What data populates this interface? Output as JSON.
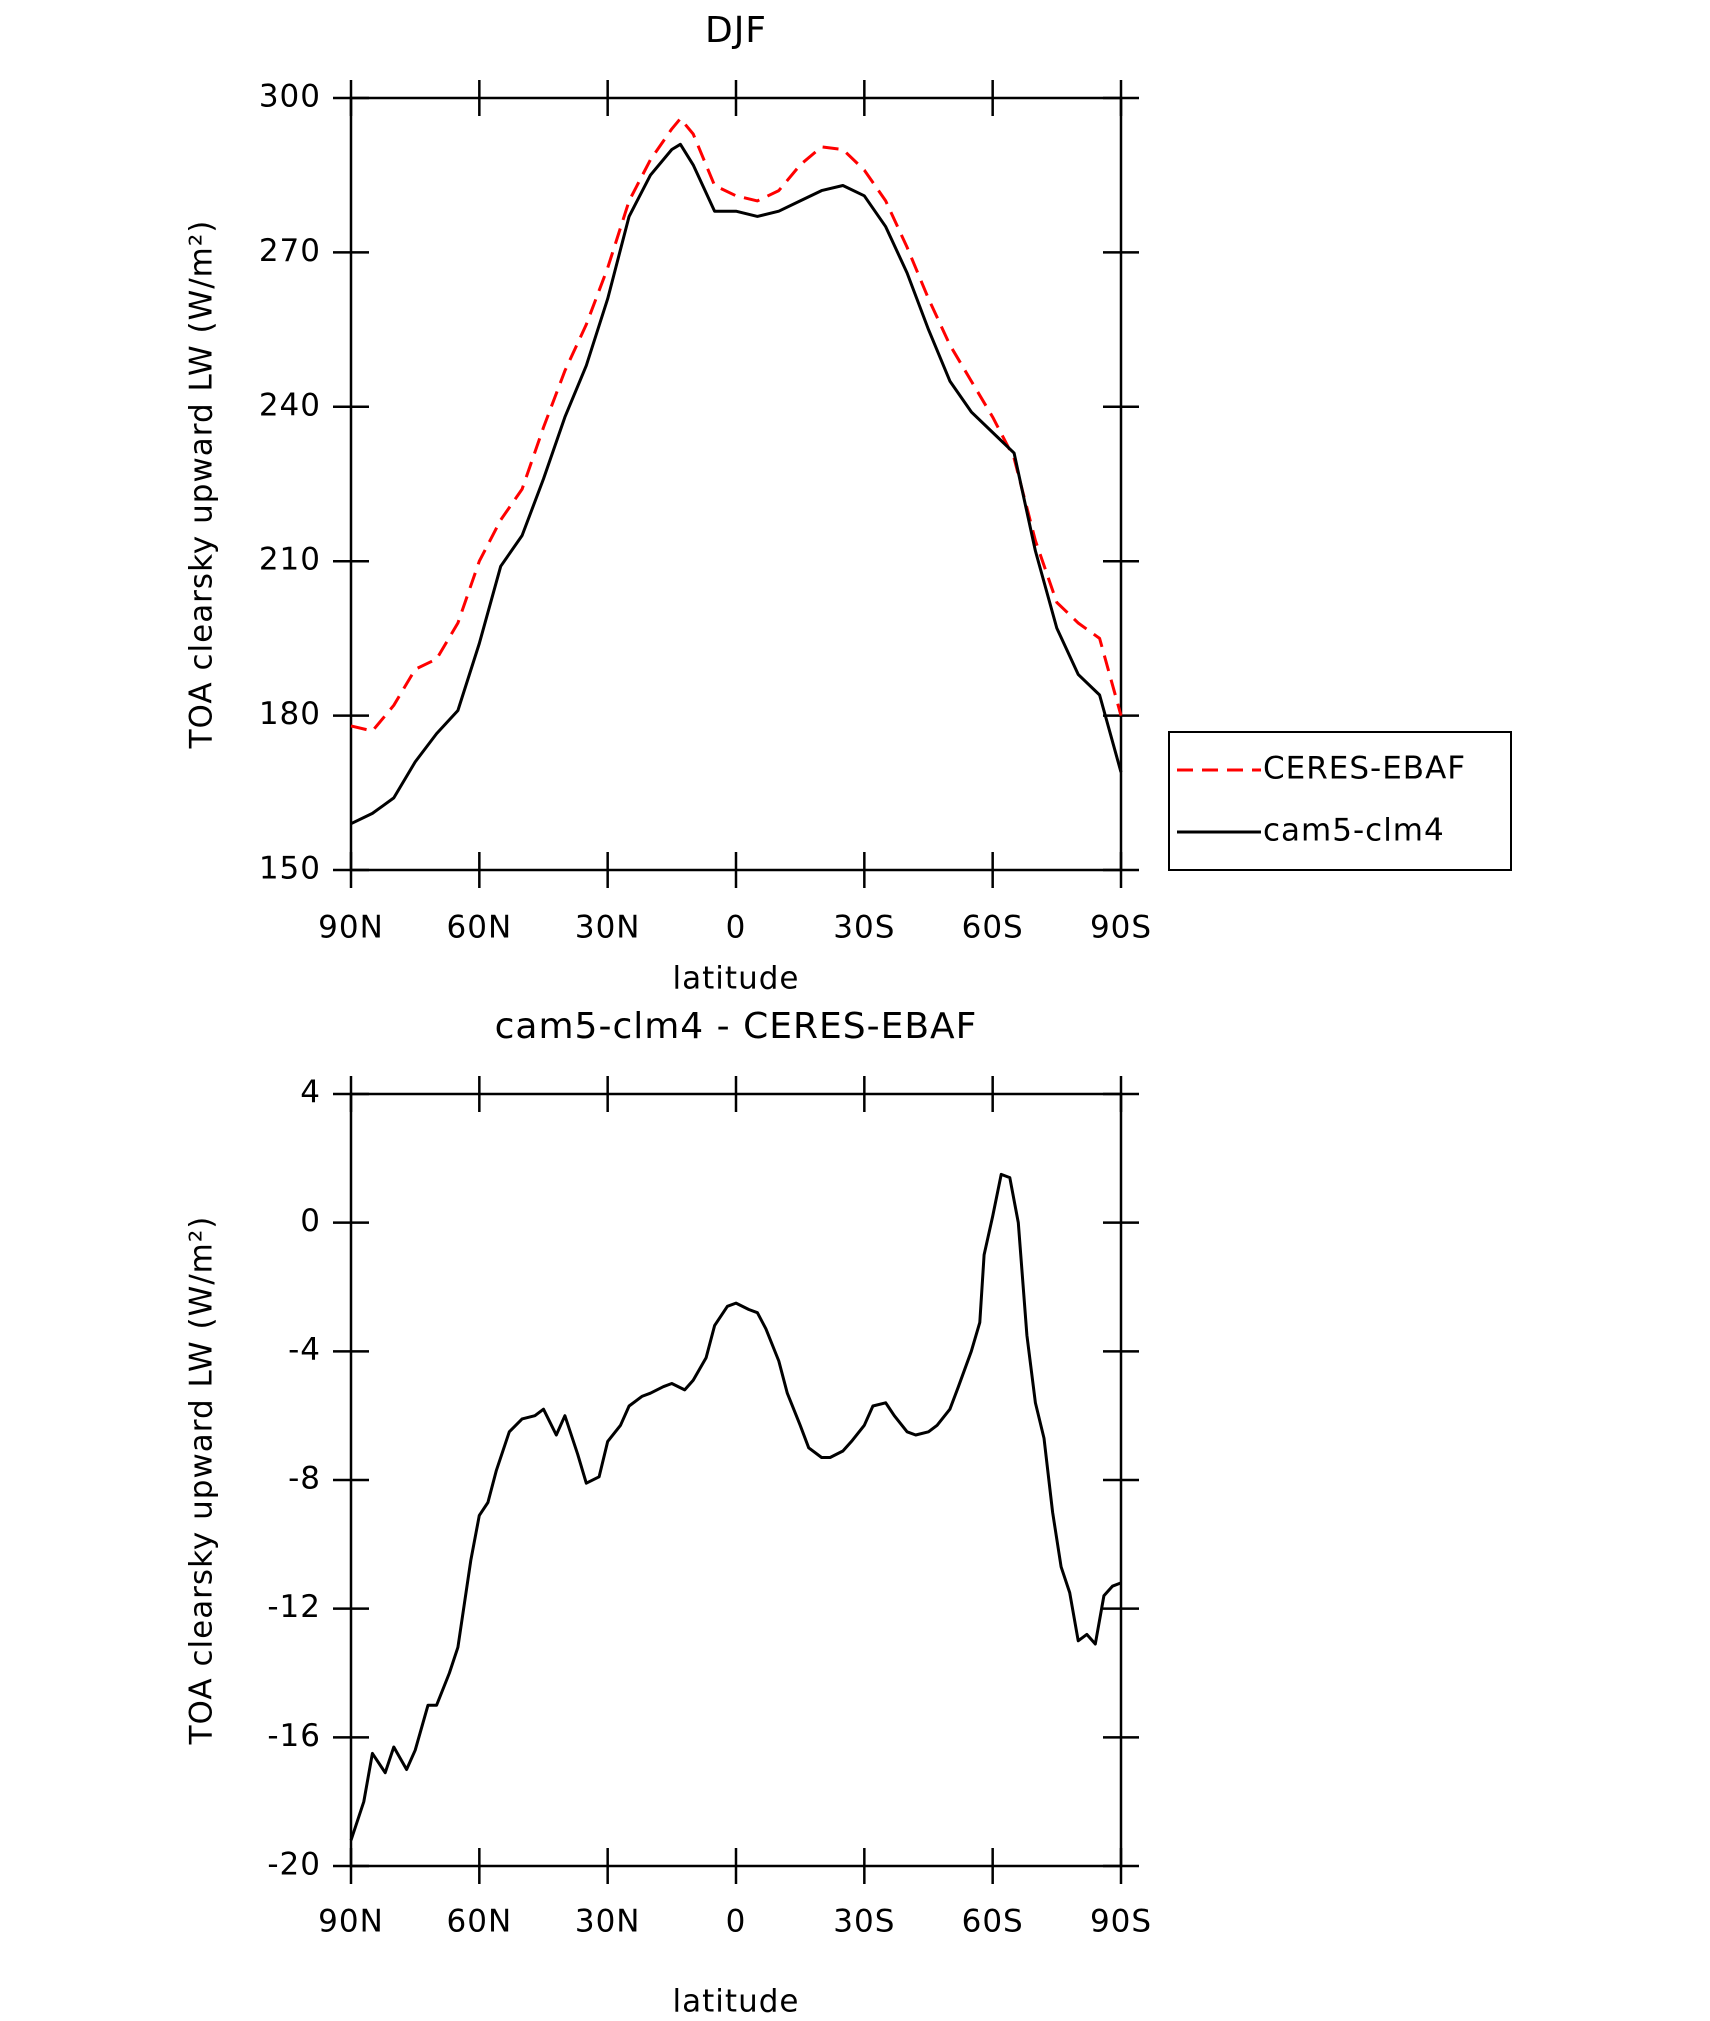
{
  "chart_data": [
    {
      "type": "line",
      "title": "DJF",
      "xlabel": "latitude",
      "ylabel": "TOA clearsky upward LW (W/m²)",
      "x": [
        90,
        85,
        80,
        75,
        70,
        65,
        60,
        55,
        50,
        45,
        40,
        35,
        30,
        25,
        20,
        15,
        13,
        10,
        5,
        0,
        -5,
        -10,
        -15,
        -20,
        -25,
        -30,
        -35,
        -40,
        -45,
        -50,
        -55,
        -60,
        -65,
        -70,
        -75,
        -80,
        -85,
        -90
      ],
      "series": [
        {
          "name": "CERES-EBAF",
          "color": "#ff0000",
          "line_style": "dashed",
          "values": [
            178,
            177,
            182,
            189,
            191,
            198,
            210,
            218,
            224,
            236,
            247,
            256,
            267,
            280,
            288,
            294,
            296,
            293,
            283,
            281,
            280,
            282,
            287,
            290.5,
            290,
            286,
            280,
            271,
            261,
            252,
            245,
            238,
            230,
            214,
            202,
            198,
            195,
            180
          ]
        },
        {
          "name": "cam5-clm4",
          "color": "#000000",
          "line_style": "solid",
          "values": [
            159,
            161,
            164,
            171,
            176.5,
            181,
            194,
            209,
            215,
            226,
            238,
            248,
            261,
            277,
            285,
            290,
            291,
            287,
            278,
            278,
            277,
            278,
            280,
            282,
            283,
            281,
            275,
            266,
            255,
            245,
            239,
            235,
            231,
            212,
            197,
            188,
            184,
            169
          ]
        }
      ],
      "xlim": [
        90,
        -90
      ],
      "xticks": [
        {
          "value": 90,
          "label": "90N"
        },
        {
          "value": 60,
          "label": "60N"
        },
        {
          "value": 30,
          "label": "30N"
        },
        0,
        {
          "value": -30,
          "label": "30S"
        },
        {
          "value": -60,
          "label": "60S"
        },
        {
          "value": -90,
          "label": "90S"
        }
      ],
      "ylim": [
        150,
        300
      ],
      "yticks": [
        150,
        180,
        210,
        240,
        270,
        300
      ],
      "legend": "right"
    },
    {
      "type": "line",
      "title": "cam5-clm4 - CERES-EBAF",
      "xlabel": "latitude",
      "ylabel": "TOA clearsky upward LW (W/m²)",
      "x": [
        90,
        87,
        85,
        82,
        80,
        77,
        75,
        72,
        70,
        67,
        65,
        62,
        60,
        58,
        56,
        53,
        50,
        47,
        45,
        42,
        40,
        37,
        35,
        32,
        30,
        27,
        25,
        22,
        20,
        17,
        15,
        12,
        10,
        7,
        5,
        2,
        0,
        -3,
        -5,
        -7,
        -10,
        -12,
        -15,
        -17,
        -20,
        -22,
        -25,
        -27,
        -30,
        -32,
        -35,
        -37,
        -40,
        -42,
        -45,
        -47,
        -50,
        -52,
        -55,
        -57,
        -58,
        -60,
        -62,
        -64,
        -66,
        -68,
        -70,
        -72,
        -74,
        -76,
        -78,
        -80,
        -82,
        -84,
        -86,
        -88,
        -90
      ],
      "series": [
        {
          "color": "#000000",
          "line_style": "solid",
          "values": [
            -19.2,
            -18,
            -16.5,
            -17.1,
            -16.3,
            -17,
            -16.4,
            -15,
            -15,
            -14,
            -13.2,
            -10.5,
            -9.1,
            -8.7,
            -7.7,
            -6.5,
            -6.1,
            -6,
            -5.8,
            -6.6,
            -6,
            -7.2,
            -8.1,
            -7.9,
            -6.8,
            -6.3,
            -5.7,
            -5.4,
            -5.3,
            -5.1,
            -5,
            -5.2,
            -4.9,
            -4.2,
            -3.2,
            -2.6,
            -2.5,
            -2.7,
            -2.8,
            -3.3,
            -4.3,
            -5.3,
            -6.3,
            -7,
            -7.3,
            -7.3,
            -7.1,
            -6.8,
            -6.3,
            -5.7,
            -5.6,
            -6,
            -6.5,
            -6.6,
            -6.5,
            -6.3,
            -5.8,
            -5.1,
            -4,
            -3.1,
            -1,
            0.2,
            1.5,
            1.4,
            0,
            -3.5,
            -5.6,
            -6.7,
            -9,
            -10.7,
            -11.5,
            -13,
            -12.8,
            -13.1,
            -11.6,
            -11.3,
            -11.2
          ]
        }
      ],
      "xlim": [
        90,
        -90
      ],
      "xticks": [
        {
          "value": 90,
          "label": "90N"
        },
        {
          "value": 60,
          "label": "60N"
        },
        {
          "value": 30,
          "label": "30N"
        },
        0,
        {
          "value": -30,
          "label": "30S"
        },
        {
          "value": -60,
          "label": "60S"
        },
        {
          "value": -90,
          "label": "90S"
        }
      ],
      "ylim": [
        -20,
        4
      ],
      "yticks": [
        -20,
        -16,
        -12,
        -8,
        -4,
        0,
        4
      ]
    }
  ]
}
